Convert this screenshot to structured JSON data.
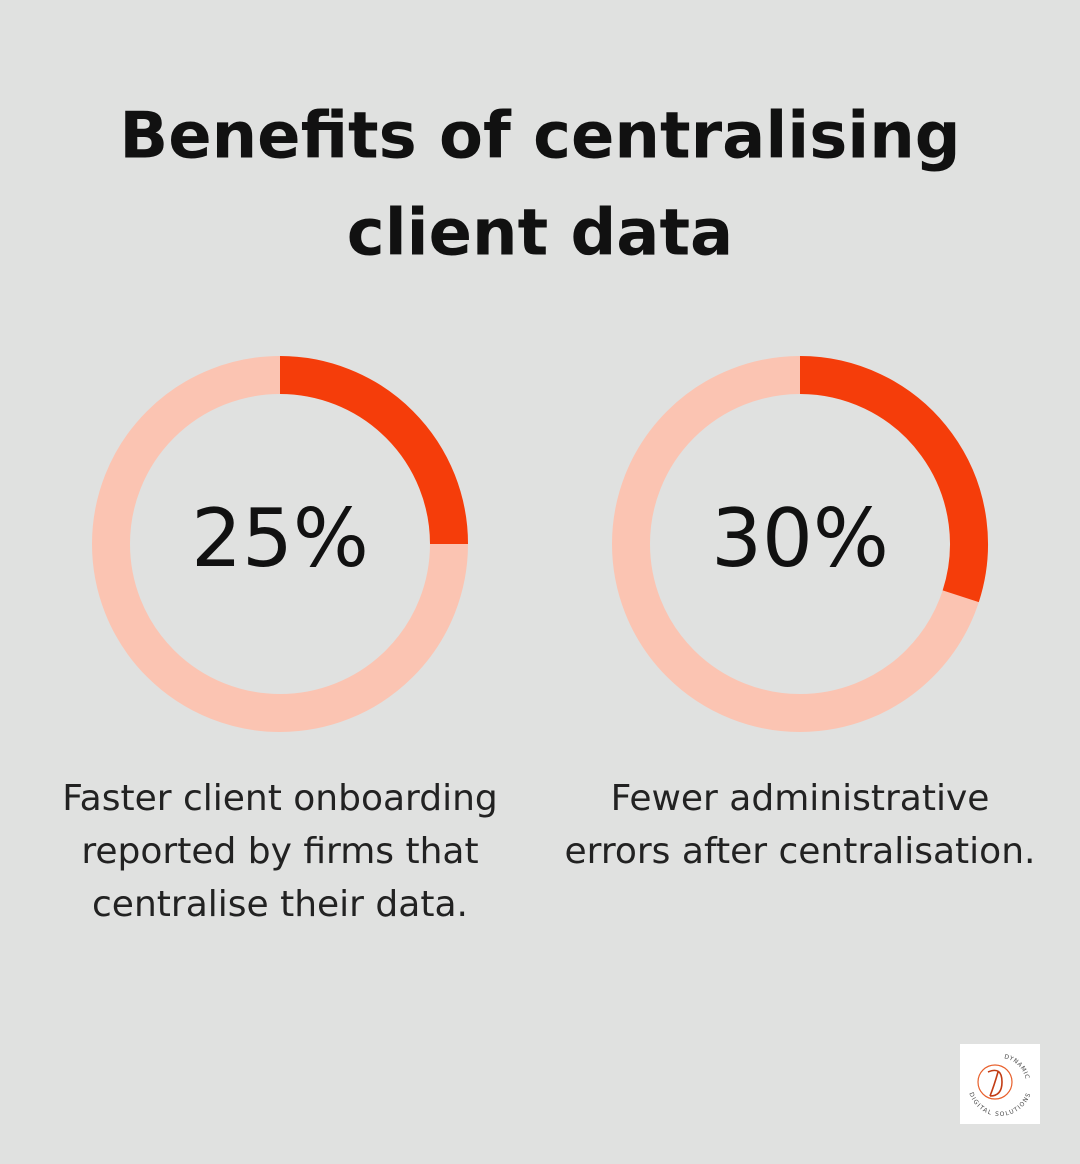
{
  "title": [
    "Benefits of centralising",
    "client data"
  ],
  "chart_data": [
    {
      "type": "donut",
      "values": [
        25
      ],
      "value_labels": [
        "25%"
      ],
      "ylim": [
        0,
        100
      ],
      "color": "#f53d0a",
      "track_color": "#fbc4b2",
      "caption": [
        "Faster client onboarding",
        "reported by firms that",
        "centralise their data."
      ]
    },
    {
      "type": "donut",
      "values": [
        30
      ],
      "value_labels": [
        "30%"
      ],
      "ylim": [
        0,
        100
      ],
      "color": "#f53d0a",
      "track_color": "#fbc4b2",
      "caption": [
        "Fewer administrative",
        "errors after centralisation."
      ]
    }
  ],
  "logo": {
    "top_text": "DYNAMIC",
    "bottom_text": "DIGITAL SOLUTIONS"
  }
}
